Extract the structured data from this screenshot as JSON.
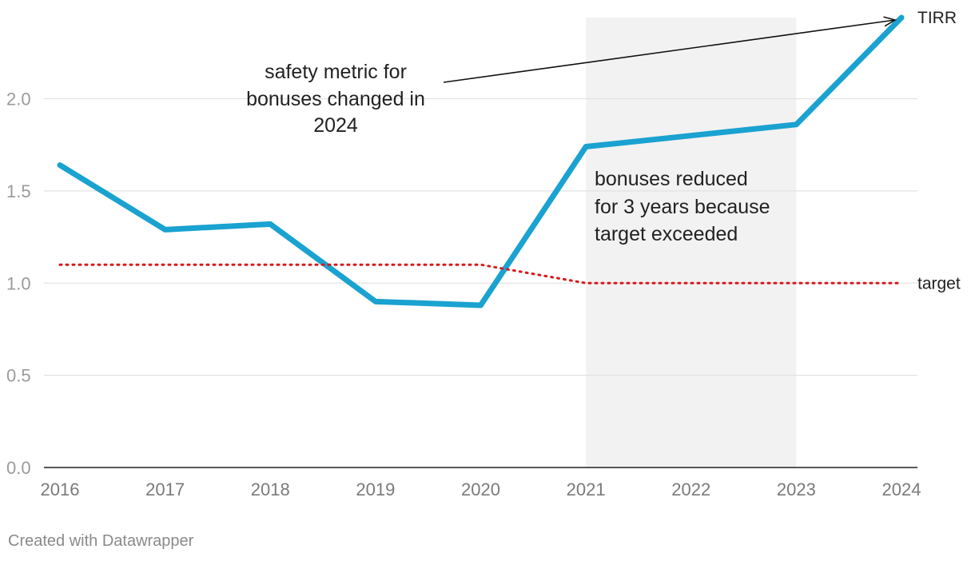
{
  "chart_data": {
    "type": "line",
    "x": [
      2016,
      2017,
      2018,
      2019,
      2020,
      2021,
      2022,
      2023,
      2024
    ],
    "categories": [
      "2016",
      "2017",
      "2018",
      "2019",
      "2020",
      "2021",
      "2022",
      "2023",
      "2024"
    ],
    "series": [
      {
        "name": "TIRR",
        "values": [
          1.64,
          1.29,
          1.32,
          0.9,
          0.88,
          1.74,
          1.8,
          1.86,
          2.44
        ],
        "color": "#1aa2d0",
        "style": "solid"
      },
      {
        "name": "target",
        "values": [
          1.1,
          1.1,
          1.1,
          1.1,
          1.1,
          1.0,
          1.0,
          1.0,
          1.0
        ],
        "color": "#d7191c",
        "style": "dotted"
      }
    ],
    "ylim": [
      0,
      2.44
    ],
    "yticks": [
      0.0,
      0.5,
      1.0,
      1.5,
      2.0
    ],
    "ytick_labels": [
      "0.0",
      "0.5",
      "1.0",
      "1.5",
      "2.0"
    ],
    "grid": true,
    "highlight_range": {
      "from": 2021,
      "to": 2023,
      "color": "#f2f2f2"
    },
    "annotations": [
      {
        "id": "metric-change",
        "lines": [
          "safety metric for",
          "bonuses changed in",
          "2024"
        ],
        "arrow_to": {
          "x": 2024,
          "y": 2.44
        }
      },
      {
        "id": "bonuses-reduced",
        "lines": [
          "bonuses reduced",
          "for 3 years because",
          "target exceeded"
        ]
      }
    ],
    "title": "",
    "xlabel": "",
    "ylabel": ""
  },
  "footer": {
    "credit": "Created with Datawrapper"
  }
}
